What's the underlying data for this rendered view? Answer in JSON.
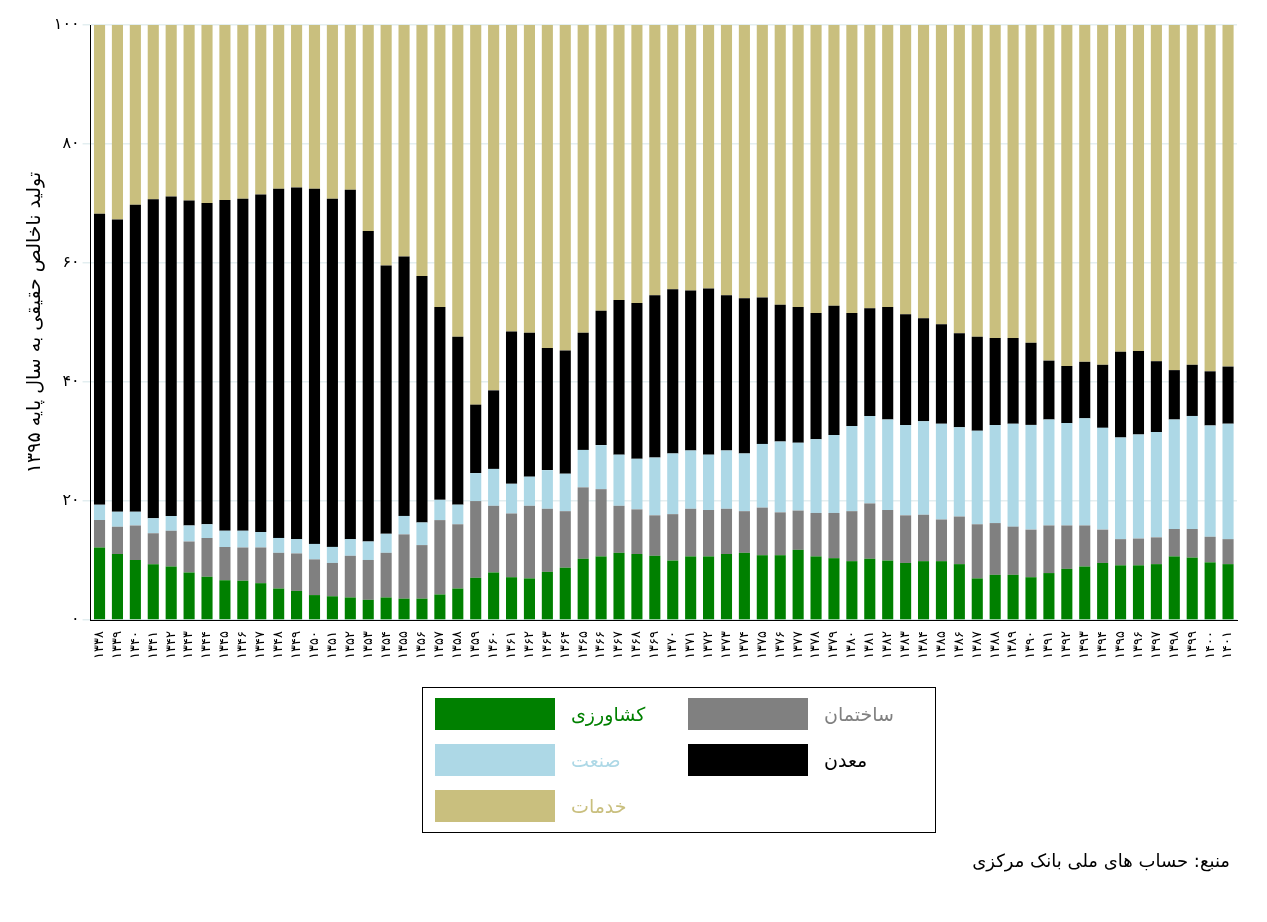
{
  "chart_data": {
    "type": "bar",
    "stacked": true,
    "ylabel": "تولید ناخالص حقیقی به سال پایه ۱۳۹۵",
    "categories": [
      "۱۳۳۸",
      "۱۳۳۹",
      "۱۳۴۰",
      "۱۳۴۱",
      "۱۳۴۲",
      "۱۳۴۳",
      "۱۳۴۴",
      "۱۳۴۵",
      "۱۳۴۶",
      "۱۳۴۷",
      "۱۳۴۸",
      "۱۳۴۹",
      "۱۳۵۰",
      "۱۳۵۱",
      "۱۳۵۲",
      "۱۳۵۳",
      "۱۳۵۴",
      "۱۳۵۵",
      "۱۳۵۶",
      "۱۳۵۷",
      "۱۳۵۸",
      "۱۳۵۹",
      "۱۳۶۰",
      "۱۳۶۱",
      "۱۳۶۲",
      "۱۳۶۳",
      "۱۳۶۴",
      "۱۳۶۵",
      "۱۳۶۶",
      "۱۳۶۷",
      "۱۳۶۸",
      "۱۳۶۹",
      "۱۳۷۰",
      "۱۳۷۱",
      "۱۳۷۲",
      "۱۳۷۳",
      "۱۳۷۴",
      "۱۳۷۵",
      "۱۳۷۶",
      "۱۳۷۷",
      "۱۳۷۸",
      "۱۳۷۹",
      "۱۳۸۰",
      "۱۳۸۱",
      "۱۳۸۲",
      "۱۳۸۳",
      "۱۳۸۴",
      "۱۳۸۵",
      "۱۳۸۶",
      "۱۳۸۷",
      "۱۳۸۸",
      "۱۳۸۹",
      "۱۳۹۰",
      "۱۳۹۱",
      "۱۳۹۲",
      "۱۳۹۳",
      "۱۳۹۴",
      "۱۳۹۵",
      "۱۳۹۶",
      "۱۳۹۷",
      "۱۳۹۸",
      "۱۳۹۹",
      "۱۴۰۰",
      "۱۴۰۱"
    ],
    "series": [
      {
        "name": "کشاورزی",
        "color": "#008000",
        "values": [
          12.2,
          11.1,
          10.1,
          9.4,
          9.0,
          8.0,
          7.3,
          6.7,
          6.6,
          6.2,
          5.3,
          4.9,
          4.2,
          4.0,
          3.8,
          3.4,
          3.8,
          3.6,
          3.6,
          4.3,
          5.3,
          7.1,
          8.0,
          7.2,
          7.0,
          8.1,
          8.8,
          10.3,
          10.7,
          11.3,
          11.1,
          10.8,
          10.0,
          10.7,
          10.7,
          11.1,
          11.3,
          10.9,
          10.9,
          11.8,
          10.7,
          10.4,
          9.9,
          10.3,
          10.0,
          9.6,
          9.9,
          9.9,
          9.4,
          7.0,
          7.6,
          7.6,
          7.2,
          7.9,
          8.6,
          9.0,
          9.6,
          9.2,
          9.2,
          9.4,
          10.7,
          10.5,
          9.7,
          9.4
        ]
      },
      {
        "name": "ساختمان",
        "color": "#808080",
        "values": [
          4.6,
          4.6,
          5.8,
          5.2,
          6.0,
          5.2,
          6.5,
          5.6,
          5.6,
          6.0,
          6.0,
          6.3,
          6.0,
          5.6,
          7.0,
          6.7,
          7.5,
          10.8,
          9.0,
          12.5,
          10.8,
          12.9,
          11.2,
          10.7,
          12.2,
          10.6,
          9.5,
          12.0,
          11.3,
          7.9,
          7.5,
          6.8,
          7.8,
          8.0,
          7.8,
          7.6,
          7.0,
          8.0,
          7.2,
          6.6,
          7.3,
          7.6,
          8.4,
          9.3,
          8.5,
          8.0,
          7.8,
          7.0,
          8.0,
          9.1,
          8.7,
          8.1,
          8.0,
          8.0,
          7.3,
          6.9,
          5.6,
          4.4,
          4.5,
          4.5,
          4.6,
          4.8,
          4.3,
          4.2
        ]
      },
      {
        "name": "صنعت",
        "color": "#add8e6",
        "values": [
          2.6,
          2.5,
          2.3,
          2.5,
          2.5,
          2.7,
          2.3,
          2.7,
          2.8,
          2.6,
          2.5,
          2.4,
          2.6,
          2.7,
          2.8,
          3.1,
          3.2,
          3.1,
          3.8,
          3.4,
          3.3,
          4.7,
          6.2,
          5.0,
          4.9,
          6.5,
          6.3,
          6.3,
          7.4,
          8.6,
          8.5,
          9.7,
          10.2,
          9.8,
          9.3,
          9.8,
          9.7,
          10.7,
          11.9,
          11.4,
          12.4,
          13.1,
          14.3,
          14.7,
          15.2,
          15.2,
          15.7,
          16.1,
          15.0,
          15.7,
          16.5,
          17.3,
          17.6,
          17.8,
          17.2,
          18.0,
          17.1,
          17.1,
          17.5,
          17.7,
          18.4,
          19.0,
          18.7,
          19.4
        ]
      },
      {
        "name": "معدن",
        "color": "#000000",
        "values": [
          48.9,
          49.1,
          51.6,
          53.6,
          53.7,
          54.6,
          54.0,
          55.6,
          55.8,
          56.7,
          58.7,
          59.1,
          59.7,
          58.5,
          58.7,
          52.2,
          45.1,
          43.6,
          41.4,
          32.4,
          28.2,
          11.5,
          13.2,
          25.6,
          24.2,
          20.5,
          20.7,
          19.7,
          22.6,
          26.0,
          26.2,
          27.3,
          27.6,
          26.9,
          27.9,
          26.1,
          26.1,
          24.6,
          23.0,
          22.8,
          21.2,
          21.7,
          19.0,
          18.1,
          18.9,
          18.6,
          17.3,
          16.7,
          15.8,
          15.8,
          14.6,
          14.4,
          13.8,
          9.9,
          9.6,
          9.5,
          10.6,
          14.4,
          14.0,
          11.9,
          8.3,
          8.6,
          9.1,
          9.6
        ]
      },
      {
        "name": "خدمات",
        "color": "#c9bf7e",
        "values": [
          31.7,
          32.7,
          30.2,
          29.3,
          28.8,
          29.5,
          29.9,
          29.4,
          29.2,
          28.5,
          27.5,
          27.3,
          27.5,
          29.2,
          27.7,
          34.6,
          40.4,
          38.9,
          42.2,
          47.4,
          52.4,
          63.8,
          61.4,
          51.5,
          51.7,
          54.3,
          54.7,
          51.7,
          48.0,
          46.2,
          46.7,
          45.4,
          44.4,
          44.6,
          44.3,
          45.4,
          45.9,
          45.8,
          47.0,
          47.4,
          48.4,
          47.2,
          48.4,
          47.6,
          47.4,
          48.6,
          49.3,
          50.3,
          51.8,
          52.4,
          52.6,
          52.6,
          53.4,
          56.4,
          57.3,
          56.6,
          57.1,
          54.9,
          54.8,
          56.5,
          58.0,
          57.1,
          58.2,
          57.4
        ]
      }
    ],
    "ylim": [
      0,
      100
    ],
    "yticks": [
      {
        "value": 0,
        "label": "۰"
      },
      {
        "value": 20,
        "label": "۲۰"
      },
      {
        "value": 40,
        "label": "۴۰"
      },
      {
        "value": 60,
        "label": "۶۰"
      },
      {
        "value": 80,
        "label": "۸۰"
      },
      {
        "value": 100,
        "label": "۱۰۰"
      }
    ],
    "grid": "y",
    "legend": "bottom",
    "annotations": [
      "منبع: حساب های ملی بانک مرکزی"
    ]
  }
}
